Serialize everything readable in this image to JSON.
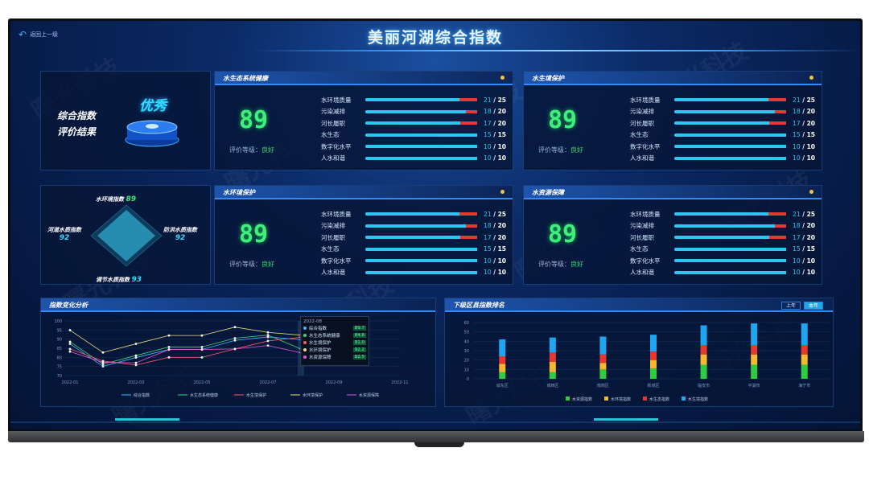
{
  "header": {
    "title": "美丽河湖综合指数",
    "back_label": "返回上一级"
  },
  "watermark": "曙光科技",
  "summary": {
    "title_line1": "综合指数",
    "title_line2": "评价结果",
    "grade": "优秀"
  },
  "radar": {
    "top": {
      "label": "水环境指数",
      "value": "89"
    },
    "left": {
      "label": "河道水质指数",
      "value": "92"
    },
    "right": {
      "label": "防洪水质指数",
      "value": "92"
    },
    "bottom": {
      "label": "调节水质指数",
      "value": "93"
    }
  },
  "panels": [
    {
      "title": "水生态系统健康",
      "score": "89",
      "rating_label": "评价等级：",
      "rating": "良好",
      "rows": [
        {
          "label": "水环境质量",
          "value": 21,
          "max": 25
        },
        {
          "label": "污染减排",
          "value": 18,
          "max": 20
        },
        {
          "label": "河长履职",
          "value": 17,
          "max": 20
        },
        {
          "label": "水生态",
          "value": 15,
          "max": 15
        },
        {
          "label": "数字化水平",
          "value": 10,
          "max": 10
        },
        {
          "label": "人水和谐",
          "value": 10,
          "max": 10
        }
      ]
    },
    {
      "title": "水生境保护",
      "score": "89",
      "rating_label": "评价等级：",
      "rating": "良好",
      "rows": [
        {
          "label": "水环境质量",
          "value": 21,
          "max": 25
        },
        {
          "label": "污染减排",
          "value": 18,
          "max": 20
        },
        {
          "label": "河长履职",
          "value": 17,
          "max": 20
        },
        {
          "label": "水生态",
          "value": 15,
          "max": 15
        },
        {
          "label": "数字化水平",
          "value": 10,
          "max": 10
        },
        {
          "label": "人水和谐",
          "value": 10,
          "max": 10
        }
      ]
    },
    {
      "title": "水环境保护",
      "score": "89",
      "rating_label": "评价等级：",
      "rating": "良好",
      "rows": [
        {
          "label": "水环境质量",
          "value": 21,
          "max": 25
        },
        {
          "label": "污染减排",
          "value": 18,
          "max": 20
        },
        {
          "label": "河长履职",
          "value": 17,
          "max": 20
        },
        {
          "label": "水生态",
          "value": 15,
          "max": 15
        },
        {
          "label": "数字化水平",
          "value": 10,
          "max": 10
        },
        {
          "label": "人水和谐",
          "value": 10,
          "max": 10
        }
      ]
    },
    {
      "title": "水资源保障",
      "score": "89",
      "rating_label": "评价等级：",
      "rating": "良好",
      "rows": [
        {
          "label": "水环境质量",
          "value": 21,
          "max": 25
        },
        {
          "label": "污染减排",
          "value": 18,
          "max": 20
        },
        {
          "label": "河长履职",
          "value": 17,
          "max": 20
        },
        {
          "label": "水生态",
          "value": 15,
          "max": 15
        },
        {
          "label": "数字化水平",
          "value": 10,
          "max": 10
        },
        {
          "label": "人水和谐",
          "value": 10,
          "max": 10
        }
      ]
    }
  ],
  "line_panel": {
    "title": "指数变化分析"
  },
  "bar_panel": {
    "title": "下级区县指数排名",
    "buttons": [
      "上年",
      "本年"
    ],
    "active_button": 1
  },
  "chart_data": [
    {
      "type": "line",
      "title": "指数变化分析",
      "x_ticks": [
        "2022-01",
        "2022-03",
        "2022-05",
        "2022-07",
        "2022-09",
        "2022-11"
      ],
      "x": [
        "2022-01",
        "2022-02",
        "2022-03",
        "2022-04",
        "2022-05",
        "2022-06",
        "2022-07",
        "2022-08"
      ],
      "ylim": [
        70,
        100
      ],
      "y_ticks": [
        70,
        75,
        80,
        85,
        90,
        95,
        100
      ],
      "grid": true,
      "legend": "bottom",
      "series": [
        {
          "name": "综合指数",
          "color": "#3fb8ff",
          "values": [
            87.4,
            75.1,
            79.9,
            84.3,
            84.3,
            89.3,
            91.2,
            89.7
          ]
        },
        {
          "name": "水生态系统健康",
          "color": "#3cd878",
          "values": [
            88.6,
            76.3,
            81.0,
            85.7,
            85.7,
            90.5,
            92.2,
            84.6
          ]
        },
        {
          "name": "水生境保护",
          "color": "#ff5a6a",
          "values": [
            84.6,
            78.0,
            75.8,
            80.0,
            80.0,
            84.6,
            89.0,
            91.0
          ]
        },
        {
          "name": "水环境保护",
          "color": "#e8e07a",
          "values": [
            94.9,
            82.7,
            87.4,
            92.0,
            92.0,
            96.6,
            93.7,
            92.2
          ]
        },
        {
          "name": "水资源保障",
          "color": "#e05ad8",
          "values": [
            83.2,
            77.3,
            77.0,
            84.3,
            84.3,
            84.6,
            86.5,
            82.5
          ]
        }
      ],
      "tooltip": {
        "title": "2022-08",
        "rows": [
          "综合指数",
          "水生态系统健康",
          "水生境保护",
          "水环境保护",
          "水资源保障"
        ],
        "values": [
          "89.7",
          "84.6",
          "91.0",
          "92.2",
          "82.5"
        ]
      }
    },
    {
      "type": "bar",
      "stacked": true,
      "title": "下级区县指数排名",
      "categories": [
        "城东区",
        "城西区",
        "南岗区",
        "新城区",
        "临安市",
        "平湖市",
        "海宁市"
      ],
      "ylim": [
        0,
        60
      ],
      "y_ticks": [
        0,
        10,
        20,
        30,
        40,
        50,
        60
      ],
      "grid": true,
      "legend": "bottom",
      "series": [
        {
          "name": "水资源指数",
          "color": "#2ecc40",
          "values": [
            7,
            7,
            10,
            11,
            15,
            15,
            15
          ]
        },
        {
          "name": "水环境指数",
          "color": "#f5b82e",
          "values": [
            9,
            11,
            7,
            9,
            11,
            11,
            11
          ]
        },
        {
          "name": "水生态指数",
          "color": "#e8372f",
          "values": [
            8,
            10,
            9,
            9,
            10,
            10,
            10
          ]
        },
        {
          "name": "水生境指数",
          "color": "#1fa6f0",
          "values": [
            18,
            16,
            19,
            18,
            21,
            23,
            23
          ]
        }
      ]
    }
  ]
}
